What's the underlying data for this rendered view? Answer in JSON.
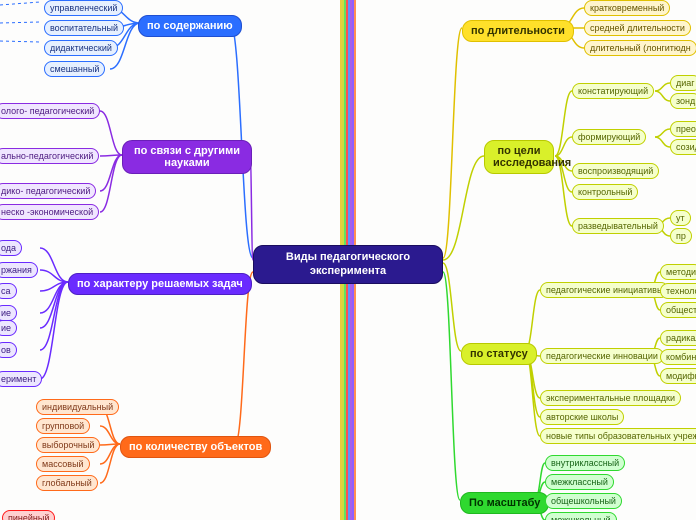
{
  "root": {
    "label": "Виды педагогического эксперимента",
    "bg": "#2b1a8f",
    "border": "#1a0d5e",
    "color": "#ffffff"
  },
  "colors": {
    "branch_blue": {
      "bg": "#2b6eff",
      "border": "#1f4fd1",
      "text": "#ffffff"
    },
    "branch_purple": {
      "bg": "#8a2be2",
      "border": "#6a1fb8",
      "text": "#ffffff"
    },
    "branch_violet": {
      "bg": "#6a2bff",
      "border": "#4d1fc4",
      "text": "#ffffff"
    },
    "branch_orange": {
      "bg": "#ff6a1a",
      "border": "#e05510",
      "text": "#ffffff"
    },
    "branch_lime": {
      "bg": "#d9f02a",
      "border": "#b8c900",
      "text": "#333300"
    },
    "branch_yellow": {
      "bg": "#ffe02a",
      "border": "#e0c000",
      "text": "#333300"
    },
    "branch_green": {
      "bg": "#2fd92f",
      "border": "#1fb81f",
      "text": "#003300"
    },
    "leaf_blue": {
      "bg": "#e6f0ff",
      "border": "#2b6eff",
      "text": "#1a3380"
    },
    "leaf_purple": {
      "bg": "#f0e6ff",
      "border": "#8a2be2",
      "text": "#4d1a80"
    },
    "leaf_violet": {
      "bg": "#ece6ff",
      "border": "#6a2bff",
      "text": "#3a1a80"
    },
    "leaf_orange": {
      "bg": "#ffe6d0",
      "border": "#ff6a1a",
      "text": "#803a1a"
    },
    "leaf_lime": {
      "bg": "#f5ffcc",
      "border": "#c0d000",
      "text": "#556600"
    },
    "leaf_yellow": {
      "bg": "#fff5cc",
      "border": "#e0c000",
      "text": "#665500"
    },
    "leaf_green": {
      "bg": "#d0ffd0",
      "border": "#2fd92f",
      "text": "#1a661a"
    }
  },
  "left": [
    {
      "key": "content",
      "label": "по содержанию",
      "style": "branch_blue",
      "children_style": "leaf_blue",
      "children": [
        "управленческий",
        "воспитательный",
        "дидактический",
        "смешанный"
      ]
    },
    {
      "key": "science",
      "label": "по связи с другими науками",
      "style": "branch_purple",
      "children_style": "leaf_purple",
      "children": [
        "олого- педагогический",
        "ально-педагогический",
        "дико- педагогический",
        "неско -экономической"
      ]
    },
    {
      "key": "tasks",
      "label": "по характеру решаемых задач",
      "style": "branch_violet",
      "children_style": "leaf_violet",
      "children": [
        "ода",
        "ржания",
        "са",
        "ие",
        "ов",
        "еримент"
      ]
    },
    {
      "key": "objects",
      "label": "по количеству объектов",
      "style": "branch_orange",
      "children_style": "leaf_orange",
      "children": [
        "индивидуальный",
        "групповой",
        "выборочный",
        "массовый",
        "глобальный"
      ]
    },
    {
      "key": "linear",
      "label": "",
      "style": "",
      "children_style": "",
      "children": [],
      "extra": "пинейный"
    }
  ],
  "right": [
    {
      "key": "duration",
      "label": "по длительности",
      "style": "branch_yellow",
      "children_style": "leaf_yellow",
      "children": [
        "кратковременный",
        "средней длительности",
        "длительный (лонгитюдн"
      ]
    },
    {
      "key": "goal",
      "label": "по цели исследования",
      "style": "branch_lime",
      "children_style": "leaf_lime",
      "children": [
        "констатирующий",
        "формирующий",
        "воспроизводящий",
        "контрольный",
        "разведывательный"
      ],
      "sub": {
        "констатирующий": [
          "диаг",
          "зонд"
        ],
        "формирующий": [
          "преобр",
          "созидат"
        ],
        "разведывательный": [
          "ут",
          "пр"
        ]
      }
    },
    {
      "key": "status",
      "label": "по статусу",
      "style": "branch_lime",
      "children_style": "leaf_lime",
      "children": [
        "педагогические инициативы",
        "педагогические инновации",
        "экспериментальные площадки",
        "авторские школы",
        "новые типы образовательных учреждений"
      ],
      "sub": {
        "педагогические инициативы": [
          "методи",
          "технолог",
          "общест"
        ],
        "педагогические инновации": [
          "радикал",
          "комбини",
          "модифи"
        ]
      }
    },
    {
      "key": "scale",
      "label": "По масштабу",
      "style": "branch_green",
      "children_style": "leaf_green",
      "children": [
        "внутриклассный",
        "межклассный",
        "общешкольный",
        "межшкольный"
      ]
    }
  ],
  "lines": {
    "stroke": {
      "content": "#2b6eff",
      "science": "#8a2be2",
      "tasks": "#6a2bff",
      "objects": "#ff6a1a",
      "duration": "#e0c000",
      "goal": "#c0d000",
      "status": "#c0d000",
      "scale": "#2fd92f"
    },
    "spine": [
      "#e0c000",
      "#c0d000",
      "#2fd92f",
      "#ff1a1a",
      "#2b6eff",
      "#8a2be2",
      "#6a2bff",
      "#ff6a1a"
    ]
  }
}
